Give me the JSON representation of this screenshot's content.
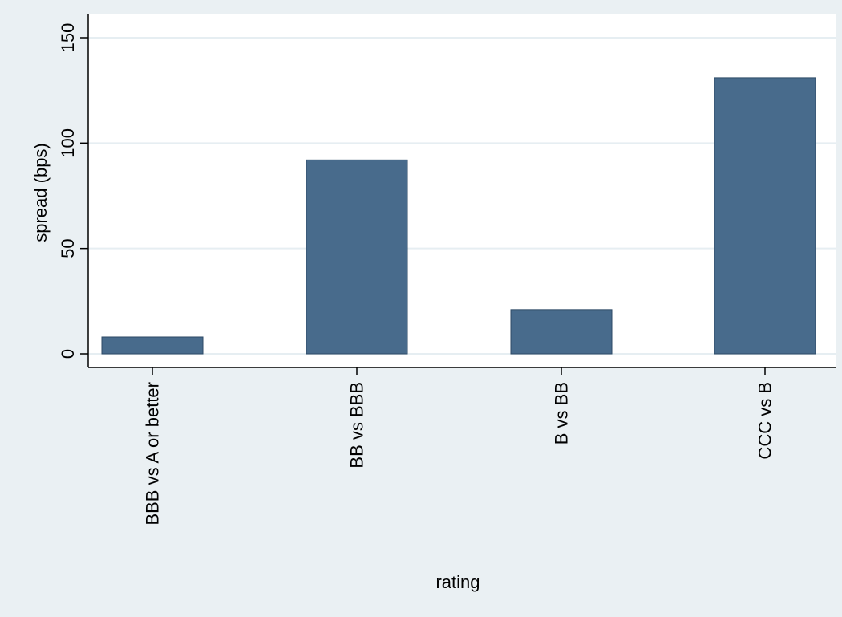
{
  "chart_data": {
    "type": "bar",
    "categories": [
      "BBB vs A or better",
      "BB vs BBB",
      "B vs BB",
      "CCC vs B"
    ],
    "values": [
      8,
      92,
      21,
      131
    ],
    "xlabel": "rating",
    "ylabel": "spread (bps)",
    "ylim": [
      0,
      150
    ],
    "yticks": [
      0,
      50,
      100,
      150
    ],
    "grid": true,
    "legend": "none",
    "colors": {
      "background": "#eaf0f3",
      "plot_area": "#ffffff",
      "bar": "#486b8c",
      "bar_edge": "#2e4a66",
      "grid": "#e6eef2"
    }
  }
}
